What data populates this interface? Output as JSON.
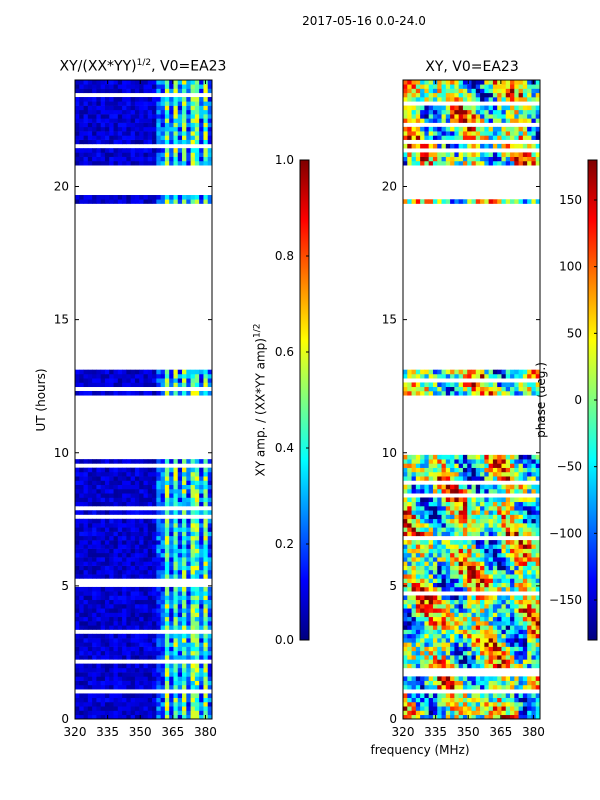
{
  "figure": {
    "suptitle": "2017-05-16 0.0-24.0",
    "shared_xlabel": "frequency (MHz)"
  },
  "colors": {
    "jet": [
      "#00007f",
      "#0000ff",
      "#007fff",
      "#00ffff",
      "#7fff7f",
      "#ffff00",
      "#ff7f00",
      "#ff0000",
      "#7f0000"
    ],
    "gap": "#ffffff",
    "frame": "#000000"
  },
  "chart_data": [
    {
      "type": "heatmap",
      "title_main": "XY/(XX*YY)",
      "title_exp": "1/2",
      "title_suffix": ", V0=EA23",
      "xlabel": "",
      "ylabel": "UT (hours)",
      "xlim": [
        320,
        383
      ],
      "ylim": [
        0,
        24
      ],
      "xticks": [
        320,
        335,
        350,
        365,
        380
      ],
      "xtick_labels": [
        "320",
        "335",
        "350",
        "365",
        "380"
      ],
      "yticks": [
        0,
        5,
        10,
        15,
        20
      ],
      "ytick_labels": [
        "0",
        "5",
        "10",
        "15",
        "20"
      ],
      "data_gaps_hours": [
        [
          9.95,
          12.1
        ],
        [
          13.05,
          19.4
        ],
        [
          19.75,
          20.8
        ]
      ],
      "bright_channel_ranges_mhz": [
        [
          360.5,
          362.5
        ],
        [
          364.5,
          366.5
        ],
        [
          369,
          371
        ],
        [
          372.5,
          374.5
        ],
        [
          376,
          378
        ],
        [
          379,
          381
        ]
      ],
      "colorbar": {
        "label_main": "XY amp. / (XX*YY amp)",
        "label_exp": "1/2",
        "range": [
          0.0,
          1.0
        ],
        "ticks": [
          0.0,
          0.2,
          0.4,
          0.6,
          0.8,
          1.0
        ],
        "tick_labels": [
          "0.0",
          "0.2",
          "0.4",
          "0.6",
          "0.8",
          "1.0"
        ]
      }
    },
    {
      "type": "heatmap",
      "title": "XY, V0=EA23",
      "xlabel": "",
      "ylabel": "",
      "xlim": [
        320,
        383
      ],
      "ylim": [
        0,
        24
      ],
      "xticks": [
        320,
        335,
        350,
        365,
        380
      ],
      "xtick_labels": [
        "320",
        "335",
        "350",
        "365",
        "380"
      ],
      "yticks": [
        0,
        5,
        10,
        15,
        20
      ],
      "ytick_labels": [
        "0",
        "5",
        "10",
        "15",
        "20"
      ],
      "data_gaps_hours": [
        [
          9.95,
          12.1
        ],
        [
          13.05,
          19.4
        ],
        [
          19.75,
          20.8
        ]
      ],
      "colorbar": {
        "label": "phase (deg.)",
        "range": [
          -180,
          180
        ],
        "ticks": [
          -150,
          -100,
          -50,
          0,
          50,
          100,
          150
        ],
        "tick_labels": [
          "−150",
          "−100",
          "−50",
          "0",
          "50",
          "100",
          "150"
        ]
      }
    }
  ]
}
